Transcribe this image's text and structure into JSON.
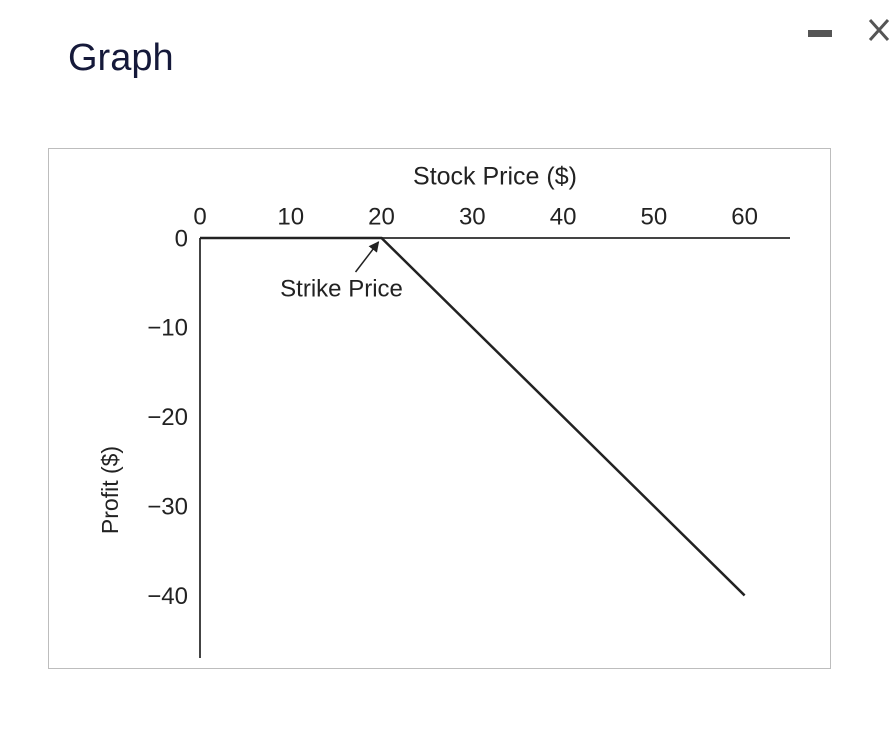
{
  "header": {
    "title": "Graph"
  },
  "chart_data": {
    "type": "line",
    "x_label": "Stock Price ($)",
    "y_label": "Profit ($)",
    "x": [
      0,
      20,
      60
    ],
    "values": [
      0,
      0,
      -40
    ],
    "color": "#222222",
    "xlim": [
      0,
      65
    ],
    "xticks": [
      0,
      10,
      20,
      30,
      40,
      50,
      60
    ],
    "ylim": [
      -47,
      0
    ],
    "yticks": [
      0,
      {
        "value": -10,
        "label": "−10"
      },
      {
        "value": -20,
        "label": "−20"
      },
      {
        "value": -30,
        "label": "−30"
      },
      {
        "value": -40,
        "label": "−40"
      }
    ],
    "grid": false,
    "annotations": [
      {
        "text": "Strike Price",
        "x": 20,
        "y": 0
      }
    ]
  }
}
